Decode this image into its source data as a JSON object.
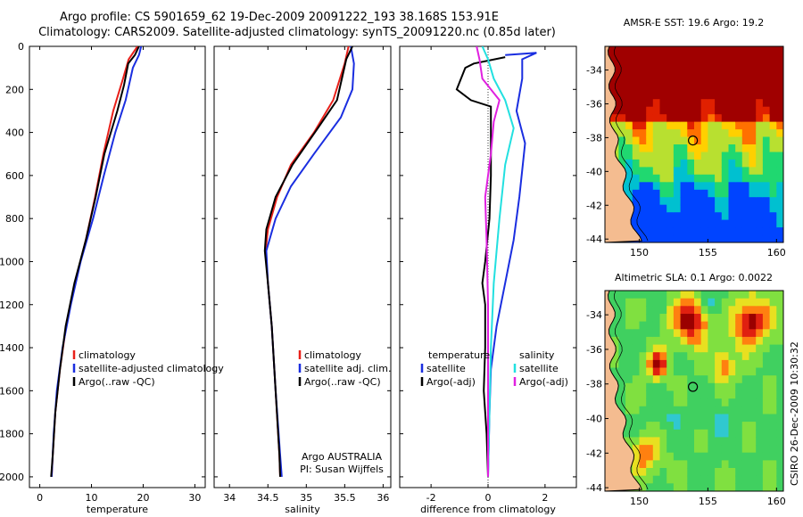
{
  "title": {
    "line1": "Argo profile: CS 5901659_62 19-Dec-2009 20091222_193 38.168S 153.91E",
    "line2": "Climatology: CARS2009. Satellite-adjusted climatology: synTS_20091220.nc (0.85d later)"
  },
  "colors": {
    "climatology": "#e8201a",
    "satellite": "#1a2ee0",
    "argo": "#000000",
    "sat_diff": "#22e0e0",
    "argo_diff": "#e020e0"
  },
  "chart_data": [
    {
      "type": "line",
      "id": "temperature",
      "xlabel": "temperature",
      "xlim": [
        -2,
        32
      ],
      "ylim": [
        0,
        2050
      ],
      "xticks": [
        "0",
        "10",
        "20",
        "30"
      ],
      "yticks": [
        "0",
        "200",
        "400",
        "600",
        "800",
        "1000",
        "1200",
        "1400",
        "1600",
        "1800",
        "2000"
      ],
      "legend": [
        "climatology",
        "satellite-adjusted climatology",
        "Argo(..raw -QC)"
      ],
      "series": [
        {
          "name": "climatology",
          "color": "#e8201a",
          "points": [
            [
              18.9,
              0
            ],
            [
              17.2,
              60
            ],
            [
              16.1,
              150
            ],
            [
              14.2,
              300
            ],
            [
              12.3,
              500
            ],
            [
              10.7,
              700
            ],
            [
              8.9,
              900
            ],
            [
              6.8,
              1100
            ],
            [
              5.1,
              1300
            ],
            [
              3.9,
              1500
            ],
            [
              3.0,
              1700
            ],
            [
              2.5,
              1900
            ],
            [
              2.3,
              2000
            ]
          ]
        },
        {
          "name": "satellite",
          "color": "#1a2ee0",
          "points": [
            [
              19.6,
              0
            ],
            [
              19.2,
              40
            ],
            [
              18.0,
              100
            ],
            [
              16.6,
              250
            ],
            [
              14.6,
              400
            ],
            [
              12.4,
              600
            ],
            [
              10.3,
              800
            ],
            [
              7.9,
              1000
            ],
            [
              6.0,
              1200
            ],
            [
              4.4,
              1400
            ],
            [
              3.3,
              1600
            ],
            [
              2.7,
              1800
            ],
            [
              2.3,
              2000
            ]
          ]
        },
        {
          "name": "argo",
          "color": "#000000",
          "points": [
            [
              19.2,
              0
            ],
            [
              18.4,
              40
            ],
            [
              17.1,
              80
            ],
            [
              16.3,
              180
            ],
            [
              15.0,
              300
            ],
            [
              12.5,
              500
            ],
            [
              10.8,
              700
            ],
            [
              8.9,
              900
            ],
            [
              6.7,
              1100
            ],
            [
              5.0,
              1300
            ],
            [
              3.9,
              1500
            ],
            [
              3.0,
              1700
            ],
            [
              2.5,
              1900
            ],
            [
              2.2,
              2000
            ]
          ]
        }
      ]
    },
    {
      "type": "line",
      "id": "salinity",
      "xlabel": "salinity",
      "xlim": [
        33.8,
        36.1
      ],
      "ylim": [
        0,
        2050
      ],
      "xticks": [
        "34",
        "34.5",
        "35",
        "35.5",
        "36"
      ],
      "legend": [
        "climatology",
        "satellite adj. clim.",
        "Argo(..raw -QC)"
      ],
      "annotation": [
        "Argo AUSTRALIA",
        "PI: Susan Wijffels"
      ],
      "series": [
        {
          "name": "climatology",
          "color": "#e8201a",
          "points": [
            [
              35.55,
              0
            ],
            [
              35.5,
              80
            ],
            [
              35.35,
              250
            ],
            [
              35.1,
              400
            ],
            [
              34.8,
              550
            ],
            [
              34.62,
              700
            ],
            [
              34.5,
              850
            ],
            [
              34.47,
              950
            ],
            [
              34.5,
              1100
            ],
            [
              34.55,
              1300
            ],
            [
              34.6,
              1600
            ],
            [
              34.65,
              1900
            ],
            [
              34.66,
              2000
            ]
          ]
        },
        {
          "name": "satellite",
          "color": "#1a2ee0",
          "points": [
            [
              35.58,
              0
            ],
            [
              35.62,
              80
            ],
            [
              35.6,
              200
            ],
            [
              35.45,
              330
            ],
            [
              35.1,
              500
            ],
            [
              34.8,
              650
            ],
            [
              34.6,
              800
            ],
            [
              34.48,
              950
            ],
            [
              34.5,
              1100
            ],
            [
              34.55,
              1300
            ],
            [
              34.6,
              1600
            ],
            [
              34.66,
              1900
            ],
            [
              34.68,
              2000
            ]
          ]
        },
        {
          "name": "argo",
          "color": "#000000",
          "points": [
            [
              35.6,
              0
            ],
            [
              35.52,
              60
            ],
            [
              35.4,
              250
            ],
            [
              35.15,
              380
            ],
            [
              34.82,
              550
            ],
            [
              34.6,
              700
            ],
            [
              34.48,
              850
            ],
            [
              34.46,
              950
            ],
            [
              34.5,
              1100
            ],
            [
              34.55,
              1300
            ],
            [
              34.6,
              1600
            ],
            [
              34.65,
              1900
            ],
            [
              34.66,
              2000
            ]
          ]
        }
      ]
    },
    {
      "type": "line",
      "id": "difference",
      "xlabel": "difference from climatology",
      "xlim": [
        -3.1,
        3.1
      ],
      "ylim": [
        0,
        2050
      ],
      "xticks": [
        "-2",
        "0",
        "2"
      ],
      "legend_left": [
        "temperature",
        "satellite",
        "Argo(-adj)"
      ],
      "legend_right": [
        "salinity",
        "satellite",
        "Argo(-adj)"
      ],
      "series": [
        {
          "name": "temp-satellite",
          "color": "#1a2ee0",
          "points": [
            [
              0.6,
              40
            ],
            [
              1.7,
              30
            ],
            [
              1.2,
              60
            ],
            [
              1.2,
              150
            ],
            [
              1.0,
              300
            ],
            [
              1.3,
              450
            ],
            [
              1.1,
              700
            ],
            [
              0.9,
              900
            ],
            [
              0.6,
              1100
            ],
            [
              0.3,
              1300
            ],
            [
              0.1,
              1500
            ],
            [
              0.05,
              1700
            ],
            [
              0.0,
              2000
            ]
          ]
        },
        {
          "name": "temp-argo",
          "color": "#000000",
          "points": [
            [
              0.6,
              50
            ],
            [
              -0.5,
              80
            ],
            [
              -0.8,
              100
            ],
            [
              -1.1,
              200
            ],
            [
              -0.6,
              250
            ],
            [
              0.1,
              280
            ],
            [
              0.1,
              400
            ],
            [
              0.1,
              600
            ],
            [
              0.05,
              800
            ],
            [
              -0.1,
              1000
            ],
            [
              -0.2,
              1100
            ],
            [
              -0.1,
              1200
            ],
            [
              -0.1,
              1400
            ],
            [
              -0.15,
              1600
            ],
            [
              -0.05,
              1800
            ],
            [
              0.0,
              2000
            ]
          ]
        },
        {
          "name": "sal-satellite",
          "color": "#22e0e0",
          "points": [
            [
              -0.2,
              0
            ],
            [
              0.0,
              60
            ],
            [
              0.2,
              150
            ],
            [
              0.6,
              250
            ],
            [
              0.9,
              380
            ],
            [
              0.6,
              550
            ],
            [
              0.4,
              800
            ],
            [
              0.2,
              1100
            ],
            [
              0.1,
              1400
            ],
            [
              0.05,
              1700
            ],
            [
              0.0,
              2000
            ]
          ]
        },
        {
          "name": "sal-argo",
          "color": "#e020e0",
          "points": [
            [
              -0.4,
              0
            ],
            [
              -0.3,
              60
            ],
            [
              -0.2,
              150
            ],
            [
              0.4,
              250
            ],
            [
              0.2,
              350
            ],
            [
              0.1,
              500
            ],
            [
              -0.1,
              700
            ],
            [
              -0.05,
              900
            ],
            [
              0.0,
              1200
            ],
            [
              0.0,
              1600
            ],
            [
              0.0,
              2000
            ]
          ]
        }
      ]
    },
    {
      "type": "heatmap",
      "id": "sst-map",
      "title": "AMSR-E SST: 19.6 Argo: 19.2",
      "xlim": [
        147.5,
        160.5
      ],
      "ylim": [
        -44.2,
        -32.6
      ],
      "xticks": [
        "150",
        "155",
        "160"
      ],
      "yticks": [
        "-34",
        "-36",
        "-38",
        "-40",
        "-42",
        "-44"
      ],
      "argo_position": [
        153.91,
        -38.168
      ]
    },
    {
      "type": "heatmap",
      "id": "sla-map",
      "title": "Altimetric SLA: 0.1 Argo: 0.0022",
      "xlim": [
        147.5,
        160.5
      ],
      "ylim": [
        -44.2,
        -32.6
      ],
      "xticks": [
        "150",
        "155",
        "160"
      ],
      "yticks": [
        "-34",
        "-36",
        "-38",
        "-40",
        "-42",
        "-44"
      ],
      "argo_position": [
        153.91,
        -38.168
      ]
    }
  ],
  "credit": "CSIRO 26-Dec-2009 10:30:32"
}
